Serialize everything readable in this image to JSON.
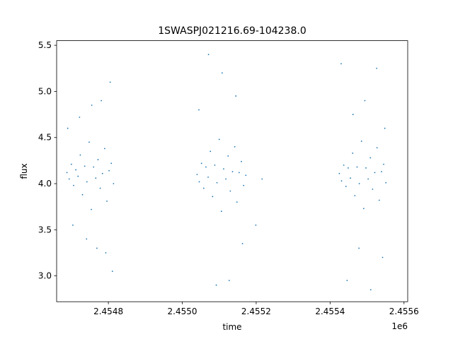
{
  "chart_data": {
    "type": "scatter",
    "title": "1SWASPJ021216.69-104238.0",
    "xlabel": "time",
    "ylabel": "flux",
    "x_offset_label": "1e6",
    "xlim": [
      2454660,
      2455610
    ],
    "ylim": [
      2.72,
      5.55
    ],
    "x_ticks": [
      2454800,
      2455000,
      2455200,
      2455400,
      2455600
    ],
    "x_tick_labels": [
      "2.4548",
      "2.4550",
      "2.4552",
      "2.4554",
      "2.4556"
    ],
    "y_ticks": [
      3.0,
      3.5,
      4.0,
      4.5,
      5.0,
      5.5
    ],
    "y_tick_labels": [
      "3.0",
      "3.5",
      "4.0",
      "4.5",
      "5.0",
      "5.5"
    ],
    "grid": false,
    "point_color": "#1f77b4",
    "series": [
      {
        "x": [
          2454688,
          2454694,
          2454700,
          2454706,
          2454712,
          2454718,
          2454724,
          2454730,
          2454736,
          2454742,
          2454748,
          2454754,
          2454760,
          2454766,
          2454772,
          2454778,
          2454784,
          2454790,
          2454796,
          2454802,
          2454808,
          2454814,
          2454690,
          2454704,
          2454722,
          2454741,
          2454755,
          2454769,
          2454781,
          2454793,
          2454805,
          2454811
        ],
        "y": [
          4.12,
          4.05,
          4.21,
          3.98,
          4.15,
          4.08,
          4.31,
          3.88,
          4.19,
          4.02,
          4.45,
          3.72,
          4.18,
          4.06,
          4.26,
          3.95,
          4.11,
          4.38,
          3.81,
          4.14,
          4.22,
          4.0,
          4.6,
          3.55,
          4.72,
          3.4,
          4.85,
          3.3,
          4.9,
          3.25,
          5.1,
          3.05
        ]
      },
      {
        "x": [
          2455040,
          2455046,
          2455052,
          2455058,
          2455064,
          2455070,
          2455076,
          2455082,
          2455088,
          2455094,
          2455100,
          2455106,
          2455112,
          2455118,
          2455124,
          2455130,
          2455136,
          2455142,
          2455148,
          2455154,
          2455160,
          2455166,
          2455172,
          2455045,
          2455071,
          2455092,
          2455108,
          2455127,
          2455145,
          2455163,
          2455199,
          2455216
        ],
        "y": [
          4.1,
          4.02,
          4.22,
          3.95,
          4.18,
          4.07,
          4.35,
          3.86,
          4.2,
          4.01,
          4.48,
          3.7,
          4.16,
          4.05,
          4.3,
          3.92,
          4.13,
          4.4,
          3.8,
          4.12,
          4.24,
          3.98,
          4.09,
          4.8,
          5.4,
          2.9,
          5.2,
          2.95,
          4.95,
          3.35,
          3.55,
          4.05
        ]
      },
      {
        "x": [
          2455425,
          2455431,
          2455437,
          2455443,
          2455449,
          2455455,
          2455461,
          2455467,
          2455473,
          2455479,
          2455485,
          2455491,
          2455497,
          2455503,
          2455509,
          2455515,
          2455521,
          2455527,
          2455533,
          2455539,
          2455545,
          2455551,
          2455430,
          2455446,
          2455462,
          2455478,
          2455494,
          2455510,
          2455526,
          2455542,
          2455548
        ],
        "y": [
          4.11,
          4.03,
          4.2,
          3.97,
          4.17,
          4.06,
          4.33,
          3.87,
          4.18,
          4.0,
          4.46,
          3.73,
          4.17,
          4.05,
          4.28,
          3.94,
          4.12,
          4.39,
          3.82,
          4.13,
          4.21,
          4.01,
          5.3,
          2.95,
          4.75,
          3.3,
          4.9,
          2.85,
          5.25,
          3.2,
          4.6
        ]
      }
    ]
  }
}
